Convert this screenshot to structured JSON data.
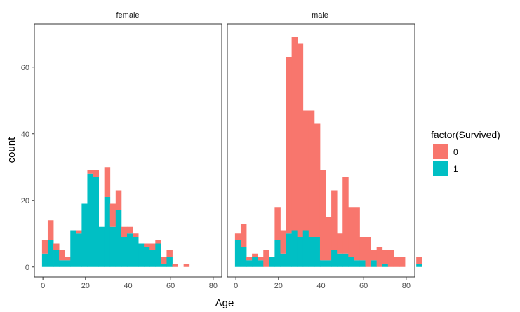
{
  "chart_data": {
    "type": "bar",
    "subtype": "faceted-stacked-histogram",
    "xlabel": "Age",
    "ylabel": "count",
    "xlim": [
      -4,
      84
    ],
    "ylim": [
      -3,
      73
    ],
    "x_ticks": [
      0,
      20,
      40,
      60,
      80
    ],
    "y_ticks": [
      0,
      20,
      40,
      60
    ],
    "grid": false,
    "legend": {
      "title": "factor(Survived)",
      "position": "right",
      "entries": [
        {
          "label": "0",
          "color": "#F8766D"
        },
        {
          "label": "1",
          "color": "#00BFC4"
        }
      ]
    },
    "bin_width": 2.66,
    "bin_start": -0.41,
    "facets": [
      {
        "label": "female",
        "died": [
          4,
          6,
          2,
          3,
          1,
          0,
          1,
          0,
          1,
          2,
          0,
          9,
          7,
          6,
          3,
          2,
          1,
          0,
          1,
          2,
          1,
          2,
          2,
          1,
          0,
          1,
          0,
          0,
          0,
          0,
          0,
          0,
          0,
          0
        ],
        "survived": [
          4,
          8,
          5,
          2,
          2,
          11,
          10,
          19,
          28,
          27,
          12,
          21,
          12,
          17,
          9,
          10,
          9,
          7,
          6,
          5,
          7,
          1,
          3,
          0,
          0,
          0,
          0,
          0,
          0,
          0,
          0,
          0,
          0,
          0
        ]
      },
      {
        "label": "male",
        "died": [
          2,
          7,
          1,
          1,
          1,
          5,
          0,
          10,
          7,
          53,
          58,
          58,
          36,
          38,
          34,
          27,
          13,
          18,
          6,
          23,
          15,
          16,
          7,
          9,
          3,
          6,
          4,
          5,
          3,
          3,
          0,
          0,
          2,
          0,
          0
        ],
        "survived": [
          8,
          6,
          2,
          3,
          2,
          0,
          3,
          8,
          4,
          10,
          11,
          9,
          11,
          9,
          9,
          2,
          2,
          5,
          4,
          4,
          3,
          2,
          2,
          0,
          2,
          0,
          1,
          0,
          0,
          0,
          0,
          0,
          1,
          0,
          0
        ]
      }
    ]
  }
}
